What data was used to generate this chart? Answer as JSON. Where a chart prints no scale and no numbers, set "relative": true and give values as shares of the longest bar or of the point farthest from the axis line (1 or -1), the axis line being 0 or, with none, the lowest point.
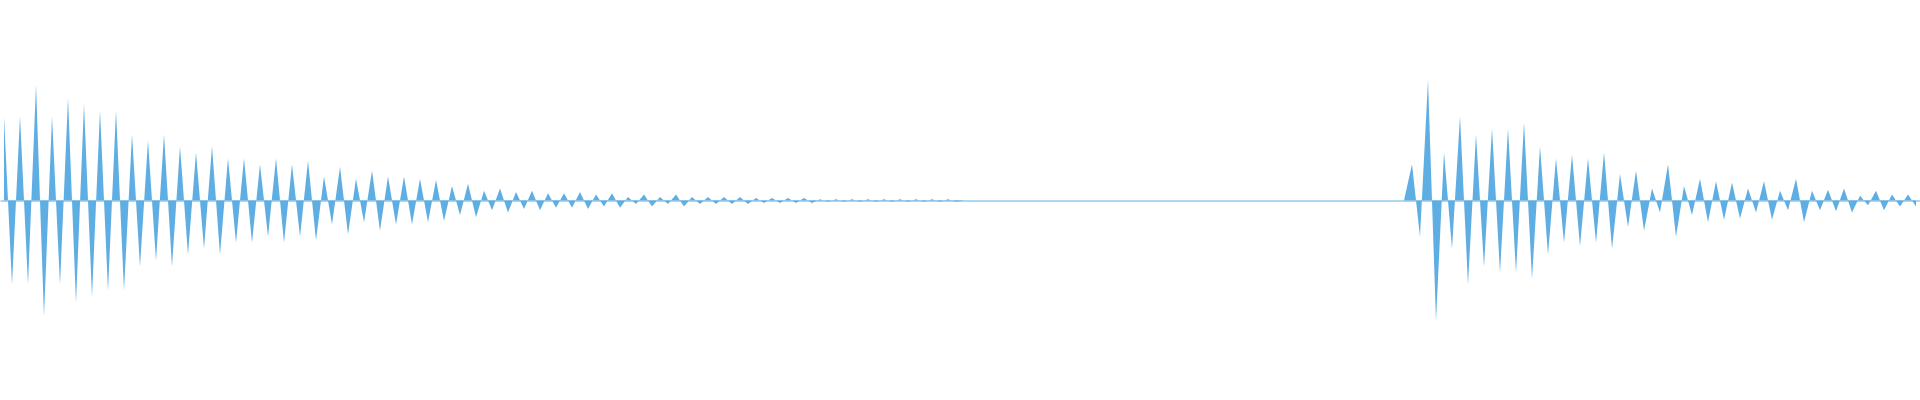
{
  "chart_data": {
    "type": "area",
    "relative": true,
    "categories": [
      null,
      null,
      null,
      null,
      null,
      null,
      null,
      null,
      null,
      null,
      null,
      null,
      null,
      null,
      null,
      null,
      null,
      null,
      null,
      null,
      null,
      null,
      null,
      null,
      null,
      null,
      null,
      null,
      null,
      null,
      null,
      null,
      null,
      null,
      null,
      null,
      null,
      null,
      null,
      null,
      null,
      null,
      null,
      null,
      null,
      null,
      null,
      null,
      null,
      null,
      null,
      null,
      null,
      null,
      null,
      null,
      null,
      null,
      null,
      null,
      null,
      null,
      null,
      null,
      null,
      null,
      null,
      null,
      null,
      null,
      null,
      null,
      null,
      null,
      null,
      null,
      null,
      null,
      null,
      null,
      null,
      null,
      null,
      null,
      null,
      null,
      null,
      null,
      null,
      null,
      null,
      null,
      null,
      null,
      null,
      null,
      null,
      null,
      null,
      null,
      null,
      null,
      null,
      null,
      null,
      null,
      null,
      null,
      null,
      null,
      null,
      null,
      null,
      null,
      null,
      null,
      null,
      null,
      null,
      null,
      null,
      null,
      null,
      null,
      null,
      null,
      null,
      null,
      null,
      null,
      null,
      null,
      null,
      null,
      null,
      null,
      null,
      null,
      null,
      null,
      null,
      null,
      null,
      null,
      null,
      null,
      null,
      null,
      null,
      null,
      null,
      null,
      null,
      null,
      null,
      null,
      null,
      null,
      null,
      null,
      null,
      null,
      null,
      null,
      null,
      null,
      null,
      null,
      null,
      null,
      null,
      null,
      null,
      null,
      null,
      null,
      null,
      null,
      null,
      null,
      null,
      null,
      null,
      null,
      null,
      null,
      null,
      null,
      null,
      null,
      null,
      null,
      null,
      null,
      null,
      null,
      null,
      null,
      null,
      null,
      null,
      null,
      null,
      null,
      null,
      null,
      null,
      null,
      null,
      null,
      null,
      null,
      null,
      null,
      null,
      null,
      null,
      null,
      null,
      null,
      null,
      null,
      null,
      null,
      null,
      null,
      null,
      null,
      null,
      null,
      null,
      null,
      null,
      null,
      null,
      null,
      null,
      null,
      null,
      null
    ],
    "series": [
      {
        "color": "#5faee3",
        "values": [
          0.7,
          -0.7,
          0.7,
          -0.7,
          0.96,
          -0.96,
          0.7,
          -0.7,
          0.85,
          -0.85,
          0.8,
          -0.8,
          0.75,
          -0.75,
          0.75,
          -0.75,
          0.55,
          -0.55,
          0.5,
          -0.5,
          0.55,
          -0.55,
          0.45,
          -0.45,
          0.4,
          -0.4,
          0.45,
          -0.45,
          0.35,
          -0.35,
          0.35,
          -0.35,
          0.3,
          -0.3,
          0.35,
          -0.35,
          0.3,
          -0.3,
          0.33,
          -0.33,
          0.2,
          -0.2,
          0.28,
          -0.28,
          0.18,
          -0.18,
          0.25,
          -0.25,
          0.2,
          -0.2,
          0.2,
          -0.2,
          0.18,
          -0.18,
          0.17,
          -0.17,
          0.12,
          -0.12,
          0.14,
          -0.14,
          0.08,
          -0.08,
          0.1,
          -0.1,
          0.07,
          -0.07,
          0.08,
          -0.08,
          0.06,
          -0.06,
          0.06,
          -0.06,
          0.07,
          -0.07,
          0.05,
          -0.05,
          0.06,
          -0.06,
          0.03,
          -0.03,
          0.05,
          -0.05,
          0.03,
          -0.03,
          0.05,
          -0.05,
          0.03,
          -0.03,
          0.03,
          -0.03,
          0.03,
          -0.03,
          0.03,
          -0.03,
          0.02,
          -0.02,
          0.02,
          -0.02,
          0.02,
          -0.02,
          0.02,
          -0.02,
          0.01,
          -0.01,
          0.01,
          -0.01,
          0.01,
          -0.01,
          0.01,
          -0.01,
          0.01,
          -0.01,
          0.01,
          -0.01,
          0.01,
          -0.01,
          0.01,
          -0.01,
          0.01,
          -0.01,
          0,
          0,
          0,
          0,
          0,
          0,
          0,
          0,
          0,
          0,
          0,
          0,
          0,
          0,
          0,
          0,
          0,
          0,
          0,
          0,
          0,
          0,
          0,
          0,
          0,
          0,
          0,
          0,
          0,
          0,
          0,
          0,
          0,
          0,
          0,
          0,
          0,
          0,
          0,
          0,
          0,
          0,
          0,
          0,
          0,
          0,
          0,
          0,
          0,
          0,
          0,
          0,
          0,
          0,
          0,
          0,
          0.3,
          -0.3,
          1,
          -1,
          0.4,
          -0.4,
          0.7,
          -0.7,
          0.55,
          -0.55,
          0.6,
          -0.6,
          0.6,
          -0.6,
          0.65,
          -0.65,
          0.45,
          -0.45,
          0.35,
          -0.35,
          0.38,
          -0.38,
          0.35,
          -0.35,
          0.4,
          -0.4,
          0.22,
          -0.22,
          0.25,
          -0.25,
          0.1,
          -0.1,
          0.3,
          -0.3,
          0.12,
          -0.12,
          0.18,
          -0.18,
          0.16,
          -0.16,
          0.15,
          -0.15,
          0.1,
          -0.1,
          0.16,
          -0.16,
          0.08,
          -0.08,
          0.18,
          -0.18,
          0.08,
          -0.08,
          0.09,
          -0.09,
          0.1,
          -0.1,
          0.04,
          -0.04,
          0.08,
          -0.08,
          0.05,
          -0.05,
          0.05,
          -0.05
        ]
      }
    ]
  }
}
